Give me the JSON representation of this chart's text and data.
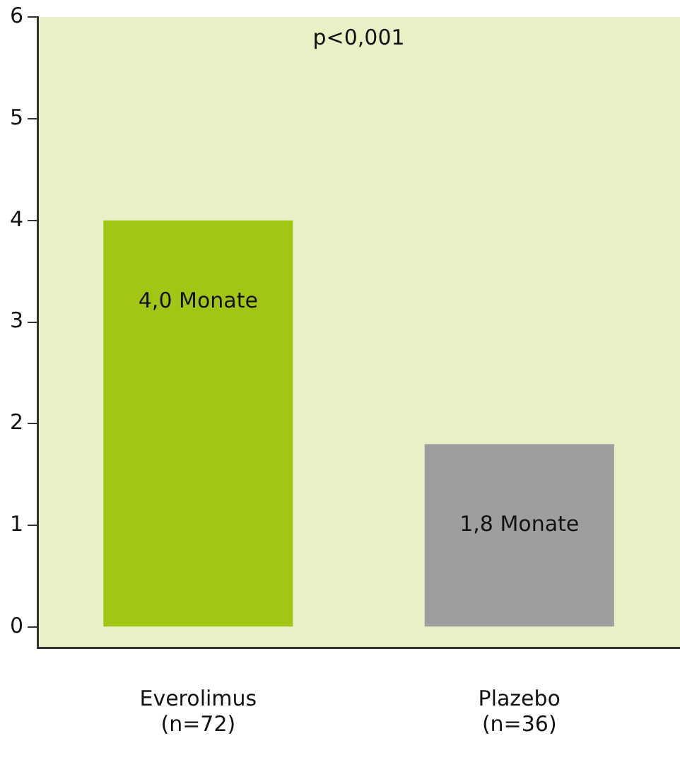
{
  "chart_data": {
    "type": "bar",
    "categories": [
      "Everolimus\n(n=72)",
      "Plazebo\n(n=36)"
    ],
    "values": [
      4.0,
      1.8
    ],
    "colors": [
      "#a2c614",
      "#9e9e9e"
    ],
    "value_labels": [
      "4,0 Monate",
      "1,8 Monate"
    ],
    "ylim": [
      -0.2,
      6
    ],
    "yticks": [
      0,
      1,
      2,
      3,
      4,
      5,
      6
    ],
    "annotations": [
      "p<0,001"
    ]
  }
}
